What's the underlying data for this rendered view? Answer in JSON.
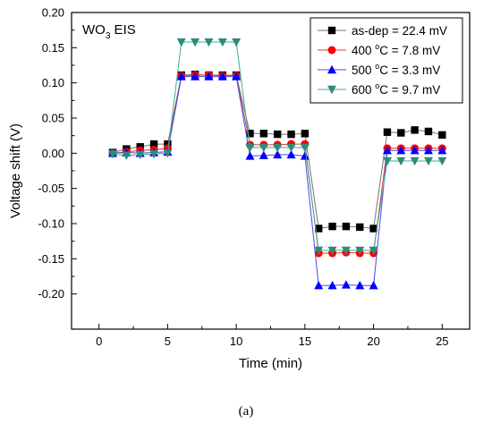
{
  "caption": "(a)",
  "chart_data": {
    "type": "line",
    "annotation": {
      "main": "WO",
      "sub": "3",
      "rest": " EIS"
    },
    "xlabel": "Time (min)",
    "ylabel": "Voltage shift (V)",
    "xlim": [
      -2,
      27
    ],
    "ylim": [
      -0.25,
      0.2
    ],
    "x_ticks": [
      0,
      5,
      10,
      15,
      20,
      25
    ],
    "y_ticks": [
      -0.2,
      -0.15,
      -0.1,
      -0.05,
      0.0,
      0.05,
      0.1,
      0.15,
      0.2
    ],
    "y_tick_labels": [
      "-0.20",
      "-0.15",
      "-0.10",
      "-0.05",
      "0.00",
      "0.05",
      "0.10",
      "0.15",
      "0.20"
    ],
    "grid": false,
    "legend_position": "top-right",
    "x": [
      1,
      2,
      3,
      4,
      5,
      6,
      7,
      8,
      9,
      10,
      11,
      12,
      13,
      14,
      15,
      16,
      17,
      18,
      19,
      20,
      21,
      22,
      23,
      24,
      25
    ],
    "series": [
      {
        "name": "as-dep = 22.4 mV",
        "legend": {
          "parts": [
            {
              "t": "as-dep = 22.4 mV"
            }
          ]
        },
        "marker": "square",
        "color": "#000000",
        "line_color": "#777777",
        "values": [
          0.001,
          0.006,
          0.009,
          0.013,
          0.013,
          0.111,
          0.112,
          0.111,
          0.111,
          0.111,
          0.028,
          0.028,
          0.027,
          0.027,
          0.028,
          -0.107,
          -0.104,
          -0.104,
          -0.105,
          -0.107,
          0.03,
          0.029,
          0.033,
          0.031,
          0.026
        ]
      },
      {
        "name": "400 °C = 7.8 mV",
        "legend": {
          "parts": [
            {
              "t": "400 "
            },
            {
              "t": "o",
              "sup": true
            },
            {
              "t": "C = 7.8 mV"
            }
          ]
        },
        "marker": "circle",
        "color": "#ff0000",
        "line_color": "#e23a3a",
        "values": [
          0.0,
          0.002,
          0.004,
          0.005,
          0.007,
          0.11,
          0.111,
          0.111,
          0.11,
          0.11,
          0.012,
          0.012,
          0.012,
          0.013,
          0.013,
          -0.142,
          -0.142,
          -0.141,
          -0.142,
          -0.142,
          0.007,
          0.007,
          0.007,
          0.007,
          0.007
        ]
      },
      {
        "name": "500 °C = 3.3 mV",
        "legend": {
          "parts": [
            {
              "t": "500 "
            },
            {
              "t": "o",
              "sup": true
            },
            {
              "t": "C = 3.3 mV"
            }
          ]
        },
        "marker": "triangle-up",
        "color": "#0000ff",
        "line_color": "#4a4ae6",
        "values": [
          0.0,
          0.001,
          0.0,
          0.001,
          0.002,
          0.109,
          0.109,
          0.109,
          0.109,
          0.109,
          -0.004,
          -0.003,
          -0.002,
          -0.002,
          -0.004,
          -0.188,
          -0.188,
          -0.187,
          -0.188,
          -0.188,
          0.004,
          0.004,
          0.004,
          0.004,
          0.004
        ]
      },
      {
        "name": "600 °C = 9.7 mV",
        "legend": {
          "parts": [
            {
              "t": "600 "
            },
            {
              "t": "o",
              "sup": true
            },
            {
              "t": "C = 9.7 mV"
            }
          ]
        },
        "marker": "triangle-down",
        "color": "#2e8b7a",
        "line_color": "#3fae96",
        "values": [
          -0.001,
          -0.003,
          -0.002,
          -0.001,
          0.0,
          0.158,
          0.158,
          0.158,
          0.158,
          0.158,
          0.008,
          0.008,
          0.008,
          0.008,
          0.008,
          -0.138,
          -0.138,
          -0.138,
          -0.138,
          -0.138,
          -0.011,
          -0.011,
          -0.011,
          -0.011,
          -0.011
        ]
      }
    ]
  }
}
